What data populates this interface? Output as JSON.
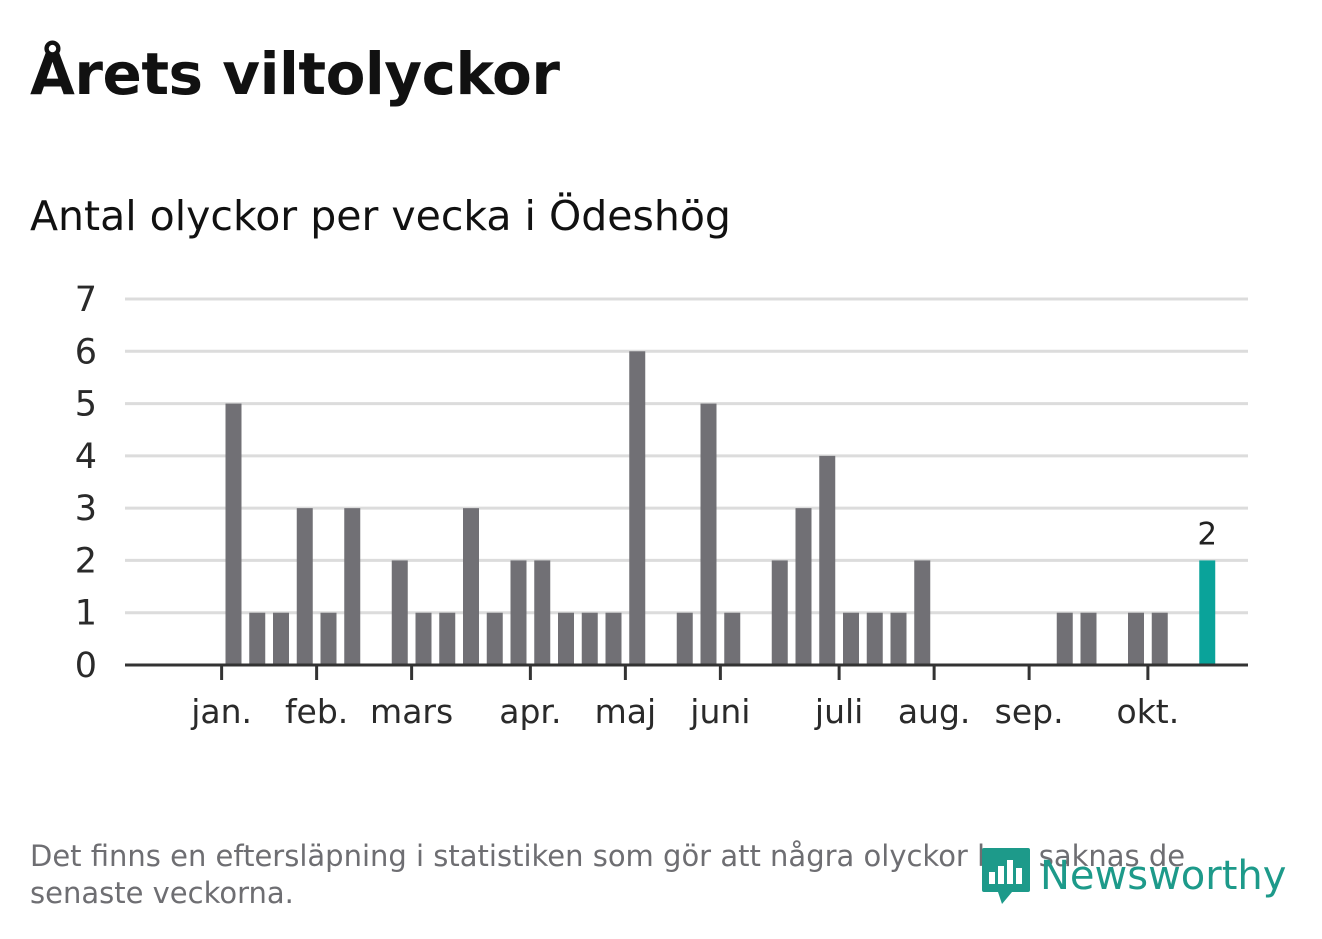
{
  "title": "Årets viltolyckor",
  "subtitle": "Antal olyckor per vecka i Ödeshög",
  "note": "Det finns en eftersläpning i statistiken som gör att några olyckor kan saknas de senaste veckorna.",
  "brand": {
    "name": "Newsworthy",
    "icon": "bar-chart-speech-bubble-icon"
  },
  "colors": {
    "bar": "#717075",
    "highlight": "#0aa39a",
    "grid": "#dcdcdc",
    "axis": "#333333",
    "text": "#2a2a2a"
  },
  "chart_data": {
    "type": "bar",
    "title": "Antal olyckor per vecka i Ödeshög",
    "xlabel": "",
    "ylabel": "",
    "ylim": [
      0,
      7
    ],
    "yticks": [
      0,
      1,
      2,
      3,
      4,
      5,
      6,
      7
    ],
    "weeks": [
      1,
      2,
      3,
      4,
      5,
      6,
      7,
      8,
      9,
      10,
      11,
      12,
      13,
      14,
      15,
      16,
      17,
      18,
      19,
      20,
      21,
      22,
      23,
      24,
      25,
      26,
      27,
      28,
      29,
      30,
      31,
      32,
      33,
      34,
      35,
      36,
      37,
      38,
      39,
      40,
      41,
      42,
      43,
      44
    ],
    "values": [
      0,
      0,
      5,
      1,
      1,
      3,
      1,
      3,
      0,
      2,
      1,
      1,
      3,
      1,
      2,
      2,
      1,
      1,
      1,
      6,
      0,
      1,
      5,
      1,
      0,
      2,
      3,
      4,
      1,
      1,
      1,
      2,
      0,
      0,
      0,
      0,
      0,
      1,
      1,
      0,
      1,
      1,
      0,
      2
    ],
    "highlight_index": 43,
    "data_labels": [
      {
        "week": 44,
        "value": 2,
        "label": "2"
      }
    ],
    "month_ticks": [
      {
        "label": "jan.",
        "week": 2.5
      },
      {
        "label": "feb.",
        "week": 6.5
      },
      {
        "label": "mars",
        "week": 10.5
      },
      {
        "label": "apr.",
        "week": 15.5
      },
      {
        "label": "maj",
        "week": 19.5
      },
      {
        "label": "juni",
        "week": 23.5
      },
      {
        "label": "juli",
        "week": 28.5
      },
      {
        "label": "aug.",
        "week": 32.5
      },
      {
        "label": "sep.",
        "week": 36.5
      },
      {
        "label": "okt.",
        "week": 41.5
      }
    ]
  }
}
